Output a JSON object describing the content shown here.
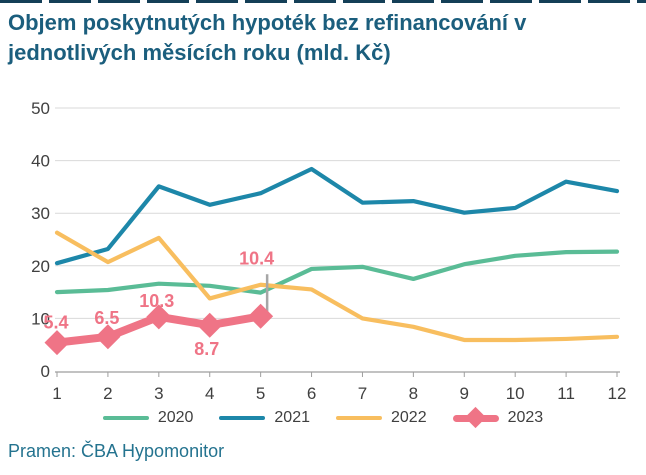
{
  "title": {
    "line1": "Objem poskytnutých hypoték bez refinancování v",
    "line2": "jednotlivých měsících roku (mld. Kč)"
  },
  "source": "Pramen: ČBA Hypomonitor",
  "colors": {
    "title": "#1b5e7d",
    "top_border": "#143f57",
    "source_text": "#24738f",
    "gridline": "#d9d9d9",
    "axis": "#9e9e9e",
    "tick_text": "#404040",
    "whisker": "#a6a6a6",
    "data_label": "#ef7486"
  },
  "chart_data": {
    "type": "line",
    "x": [
      1,
      2,
      3,
      4,
      5,
      6,
      7,
      8,
      9,
      10,
      11,
      12
    ],
    "xlabel": "",
    "ylabel": "",
    "ylim": [
      0,
      50
    ],
    "yticks": [
      0,
      10,
      20,
      30,
      40,
      50
    ],
    "grid": true,
    "legend_position": "bottom",
    "series": [
      {
        "name": "2020",
        "color": "#5abc96",
        "values": [
          15.0,
          15.4,
          16.6,
          16.2,
          14.9,
          19.4,
          19.8,
          17.5,
          20.3,
          21.9,
          22.6,
          22.7
        ]
      },
      {
        "name": "2021",
        "color": "#1d87a9",
        "values": [
          20.5,
          23.2,
          35.1,
          31.6,
          33.8,
          38.4,
          32.0,
          32.3,
          30.1,
          31.0,
          36.0,
          34.2
        ]
      },
      {
        "name": "2022",
        "color": "#f8be5f",
        "values": [
          26.3,
          20.7,
          25.3,
          13.8,
          16.4,
          15.5,
          10.0,
          8.4,
          5.9,
          5.9,
          6.1,
          6.5
        ]
      },
      {
        "name": "2023",
        "color": "#ef7486",
        "marker": "diamond",
        "values": [
          5.4,
          6.5,
          10.3,
          8.7,
          10.4
        ],
        "point_labels": [
          {
            "text": "5.4",
            "dx": -1,
            "dy": -14
          },
          {
            "text": "6.5",
            "dx": -1,
            "dy": -13
          },
          {
            "text": "10.3",
            "dx": -2,
            "dy": -10
          },
          {
            "text": "8.7",
            "dx": -3,
            "dy": 30
          },
          {
            "text": "10.4",
            "dx": -4,
            "dy": -52
          }
        ]
      }
    ],
    "annotations": {
      "whisker": {
        "month": 5,
        "from": 10.4,
        "to": 18.4
      }
    }
  },
  "legend": {
    "items": [
      {
        "label": "2020"
      },
      {
        "label": "2021"
      },
      {
        "label": "2022"
      },
      {
        "label": "2023"
      }
    ]
  }
}
